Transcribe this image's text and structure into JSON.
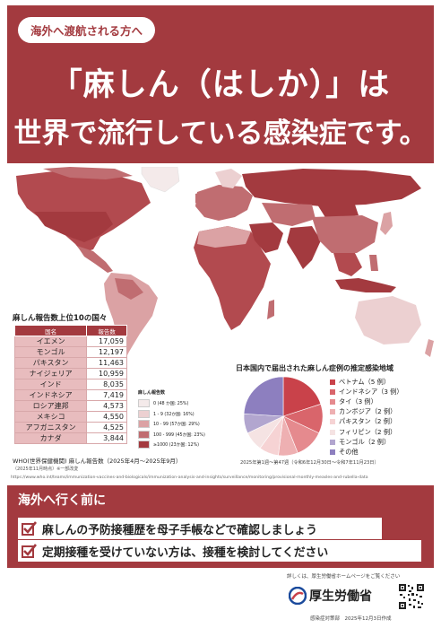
{
  "header": {
    "pill": "海外へ渡航される方へ",
    "title_line1": "「麻しん（はしか）」は",
    "title_line2": "世界で流行している感染症です。"
  },
  "colors": {
    "brand_red": "#a33a3f",
    "map_dark": "#b24a4f",
    "map_light": "#e8bcbe",
    "map_none": "#f4f2f2"
  },
  "ranking": {
    "title": "麻しん報告数上位10の国々",
    "col_country": "国名",
    "col_count": "報告数",
    "rows": [
      {
        "country": "イエメン",
        "count": "17,059"
      },
      {
        "country": "モンゴル",
        "count": "12,197"
      },
      {
        "country": "パキスタン",
        "count": "11,463"
      },
      {
        "country": "ナイジェリア",
        "count": "10,959"
      },
      {
        "country": "インド",
        "count": "8,035"
      },
      {
        "country": "インドネシア",
        "count": "7,419"
      },
      {
        "country": "ロシア連邦",
        "count": "4,573"
      },
      {
        "country": "メキシコ",
        "count": "4,550"
      },
      {
        "country": "アフガニスタン",
        "count": "4,525"
      },
      {
        "country": "カナダ",
        "count": "3,844"
      }
    ],
    "source": "WHO(世界保健機関) 麻しん報告数（2025年4月～2025年9月）",
    "source_sub": "（2025年11月時点）※一部改変",
    "url": "https://www.who.int/teams/immunization-vaccines-and-biologicals/immunization-analysis-and-insights/surveillance/monitoring/provisional-monthly-measles-and-rubella-data"
  },
  "map_legend": {
    "title": "麻しん報告数",
    "items": [
      {
        "label": "0 (48 か国: 25%)",
        "color": "#f4eaea"
      },
      {
        "label": "1 - 9 (32か国: 16%)",
        "color": "#ecd0d1"
      },
      {
        "label": "10 - 99 (57か国: 29%)",
        "color": "#dba2a4"
      },
      {
        "label": "100 - 999 (45か国: 23%)",
        "color": "#c06d71"
      },
      {
        "label": "≥1000 (23か国: 12%)",
        "color": "#a33a3f"
      }
    ]
  },
  "chart_data": {
    "type": "pie",
    "title": "日本国内で届出された麻しん症例の推定感染地域",
    "categories": [
      "ベトナム",
      "インドネシア",
      "タイ",
      "カンボジア",
      "パキスタン",
      "フィリピン",
      "モンゴル",
      "その他"
    ],
    "labels": [
      "ベトナム（5 例）",
      "インドネシア（3 例）",
      "タイ（3 例）",
      "カンボジア（2 例）",
      "パキスタン（2 例）",
      "フィリピン（2 例）",
      "モンゴル（2 例）",
      "その他"
    ],
    "values": [
      5,
      3,
      3,
      2,
      2,
      2,
      2,
      6
    ],
    "colors": [
      "#c9424a",
      "#d9656b",
      "#e58a8e",
      "#eeb0b2",
      "#f6d3d4",
      "#f5e3e3",
      "#b2a6cf",
      "#8d7fbf"
    ],
    "note": "2025年第1週～第47週（令和6年12月30日～令和7年11月23日）"
  },
  "actions": {
    "heading": "海外へ行く前に",
    "items": [
      "麻しんの予防接種歴を母子手帳などで確認しましょう",
      "定期接種を受けていない方は、接種を検討してください"
    ]
  },
  "footer": {
    "note": "詳しくは、厚生労働省ホームページをご覧ください",
    "ministry": "厚生労働省",
    "date": "感染症対策部　2025年12月3日作成"
  }
}
